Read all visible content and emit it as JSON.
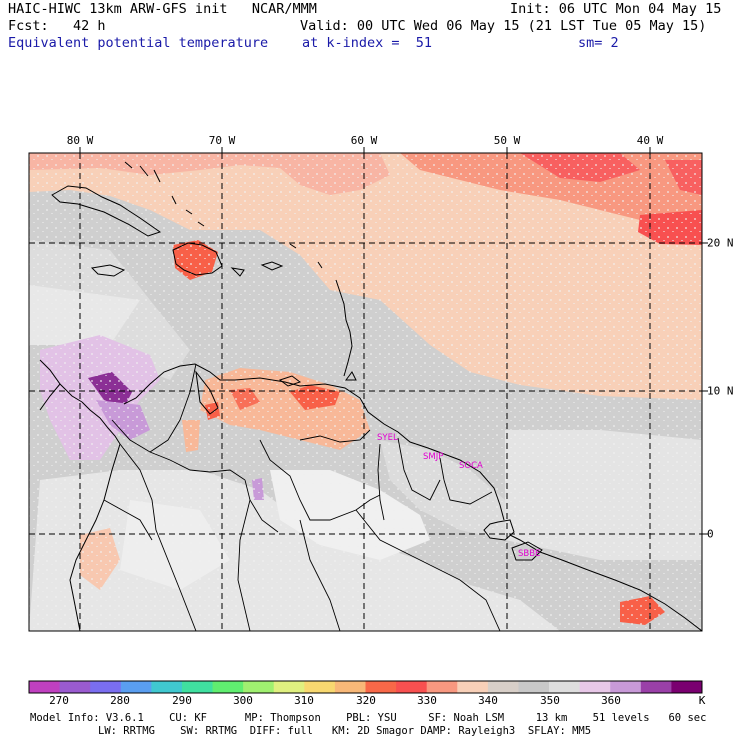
{
  "header": {
    "line1_left": "HAIC-HIWC 13km ARW-GFS init   NCAR/MMM",
    "line1_right": "Init: 06 UTC Mon 04 May 15",
    "line2_left": "Fcst:   42 h",
    "line2_right": "Valid: 00 UTC Wed 06 May 15 (21 LST Tue 05 May 15)",
    "line3_left": "Equivalent potential temperature",
    "line3_mid": "at k-index =  51",
    "line3_right": "sm= 2"
  },
  "map": {
    "lon_labels": [
      "80 W",
      "70 W",
      "60 W",
      "50 W",
      "40 W"
    ],
    "lat_labels": [
      "20 N",
      "10 N",
      "0"
    ],
    "stations": [
      "SYEL",
      "SMJP",
      "SOCA",
      "SBBE"
    ]
  },
  "colorbar": {
    "colors": [
      "#c040c0",
      "#9a5bd0",
      "#7a6ef0",
      "#5a9ef0",
      "#40c8d0",
      "#40e0a0",
      "#60ee70",
      "#a0f070",
      "#e0f080",
      "#f8d870",
      "#f8b878",
      "#f86848",
      "#f85050",
      "#f89880",
      "#f8d0b8",
      "#d8cfc8",
      "#c8c8c8",
      "#dedede",
      "#e8c8e8",
      "#c89ad8",
      "#9a40a8",
      "#7a0070"
    ],
    "labels": [
      "270",
      "280",
      "290",
      "300",
      "310",
      "320",
      "330",
      "340",
      "350",
      "360"
    ],
    "unit": "K"
  },
  "footer": {
    "line1": "Model Info: V3.6.1    CU: KF      MP: Thompson    PBL: YSU     SF: Noah LSM     13 km    51 levels   60 sec",
    "line2": "LW: RRTMG    SW: RRTMG  DIFF: full   KM: 2D Smagor DAMP: Rayleigh3  SFLAY: MM5"
  }
}
